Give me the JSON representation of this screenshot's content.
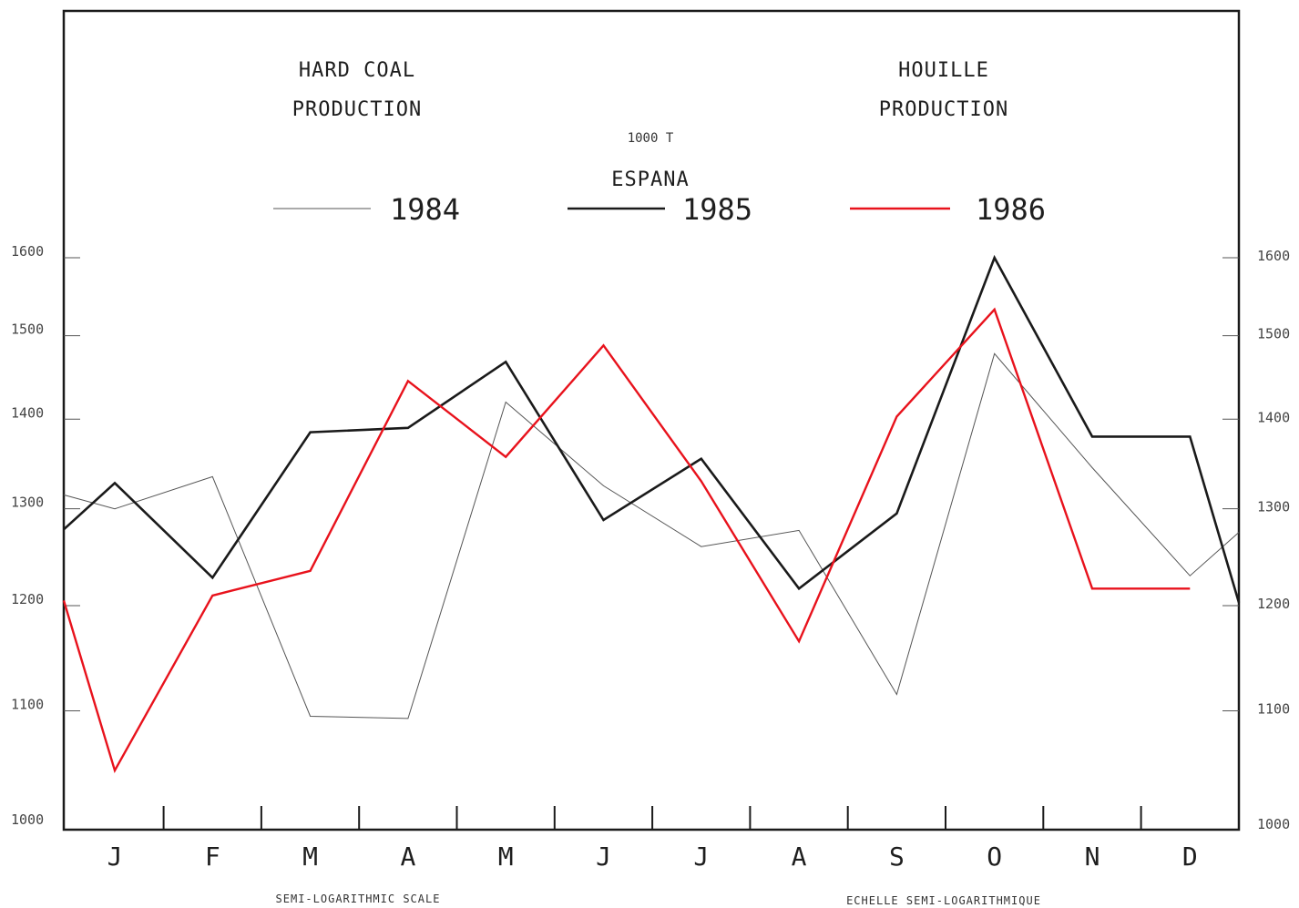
{
  "chart_data": {
    "type": "line",
    "title_left": [
      "HARD COAL",
      "PRODUCTION"
    ],
    "title_right": [
      "HOUILLE",
      "PRODUCTION"
    ],
    "unit": "1000 T",
    "subtitle": "ESPANA",
    "x": [
      "J",
      "F",
      "M",
      "A",
      "M",
      "J",
      "J",
      "A",
      "S",
      "O",
      "N",
      "D"
    ],
    "yscale": "log",
    "ylim": [
      1000,
      1700
    ],
    "yticks": [
      1000,
      1100,
      1200,
      1300,
      1400,
      1500,
      1600
    ],
    "note_left": "SEMI-LOGARITHMIC SCALE",
    "note_right": "ECHELLE SEMI-LOGARITHMIQUE",
    "legend_placement": "top",
    "series": [
      {
        "name": "1984",
        "color": "#555555",
        "width": 1,
        "start": 1315,
        "values": [
          1300,
          1335,
          1095,
          1093,
          1420,
          1325,
          1260,
          1277,
          1115,
          1478,
          1345,
          1230
        ],
        "end": 1275
      },
      {
        "name": "1985",
        "color": "#1a1a1a",
        "width": 2.6,
        "start": 1278,
        "values": [
          1328,
          1228,
          1385,
          1390,
          1468,
          1288,
          1355,
          1217,
          1295,
          1600,
          1380,
          1380
        ],
        "end": 1203
      },
      {
        "name": "1986",
        "color": "#e8121c",
        "width": 2.4,
        "start": 1205,
        "values": [
          1047,
          1210,
          1235,
          1445,
          1357,
          1488,
          1330,
          1165,
          1403,
          1533,
          1217,
          1217
        ],
        "end": null
      }
    ]
  }
}
